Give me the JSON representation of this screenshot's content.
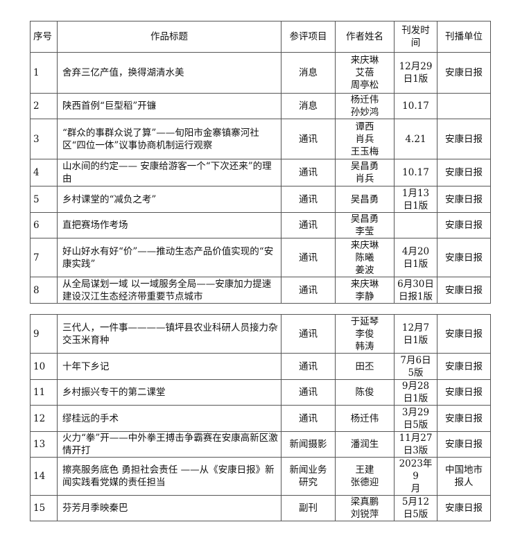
{
  "headers": [
    "序号",
    "作品标题",
    "参评项目",
    "作者姓名",
    "刊发时间",
    "刊播单位"
  ],
  "table1": [
    {
      "no": "1",
      "title": "舍弃三亿产值，换得湖清水美",
      "category": "消息",
      "authors": "来庆琳\n艾蓓\n周亭松",
      "date": "12月29\n日1版",
      "outlet": "安康日报"
    },
    {
      "no": "2",
      "title": "陕西首例“巨型稻”开镰",
      "category": "消息",
      "authors": "杨迁伟\n孙妙鸿",
      "date": "10.17",
      "outlet": ""
    },
    {
      "no": "3",
      "title": "“群众的事群众说了算”——旬阳市金寨镇寨河社区“四位一体”议事协商机制运行观察",
      "category": "通讯",
      "authors": "谭西\n肖兵\n王玉梅",
      "date": "4.21",
      "outlet": "安康日报"
    },
    {
      "no": "4",
      "title": "山水间的约定—— 安康给游客一个“下次还来”的理由",
      "category": "通讯",
      "authors": "吴昌勇\n肖兵",
      "date": "10.17",
      "outlet": "安康日报"
    },
    {
      "no": "5",
      "title": "乡村课堂的“减负之考”",
      "category": "通讯",
      "authors": "吴昌勇",
      "date": "1月13\n日1版",
      "outlet": "安康日报"
    },
    {
      "no": "6",
      "title": "直把赛场作考场",
      "category": "通讯",
      "authors": "吴昌勇\n李莹",
      "date": "",
      "outlet": "安康日报"
    },
    {
      "no": "7",
      "title": "好山好水有好“价”——推动生态产品价值实现的“安康实践”",
      "category": "通讯",
      "authors": "来庆琳\n陈曦\n姜波",
      "date": "4月20\n日1版",
      "outlet": "安康日报"
    },
    {
      "no": "8",
      "title": "从全局谋划一域 以一域服务全局——安康加力提速建设汉江生态经济带重要节点城市",
      "category": "通讯",
      "authors": "来庆琳\n李静",
      "date": "6月30日\n日报1版",
      "outlet": "安康日报"
    }
  ],
  "table2": [
    {
      "no": "9",
      "title": "三代人，一件事————镇坪县农业科研人员接力杂交玉米育种",
      "category": "通讯",
      "authors": "于延琴\n李俊\n韩涛",
      "date": "12月7\n日1版",
      "outlet": "安康日报"
    },
    {
      "no": "10",
      "title": "十年下乡记",
      "category": "通讯",
      "authors": "田丕",
      "date": "7月6日\n5版",
      "outlet": "安康日报"
    },
    {
      "no": "11",
      "title": "乡村振兴专干的第二课堂",
      "category": "通讯",
      "authors": "陈俊",
      "date": "9月28\n日1版",
      "outlet": "安康日报"
    },
    {
      "no": "12",
      "title": "缪桂远的手术",
      "category": "通讯",
      "authors": "杨迁伟",
      "date": "3月29\n日5版",
      "outlet": "安康日报"
    },
    {
      "no": "13",
      "title": "火力“拳”开——中外拳王搏击争霸赛在安康高新区激情开打",
      "category": "新闻摄影",
      "authors": "潘润生",
      "date": "11月27\n日3版",
      "outlet": "安康日报"
    },
    {
      "no": "14",
      "title": "擦亮服务底色 勇担社会责任 ——从《安康日报》新闻实践看党媒的责任担当",
      "category": "新闻业务\n研究",
      "authors": "王建\n张德迎",
      "date": "2023年9\n月",
      "outlet": "中国地市\n报人"
    },
    {
      "no": "15",
      "title": "芬芳月季映秦巴",
      "category": "副刊",
      "authors": "梁真鹏\n刘锐萍",
      "date": "5月12\n日5版",
      "outlet": "安康日报"
    }
  ]
}
